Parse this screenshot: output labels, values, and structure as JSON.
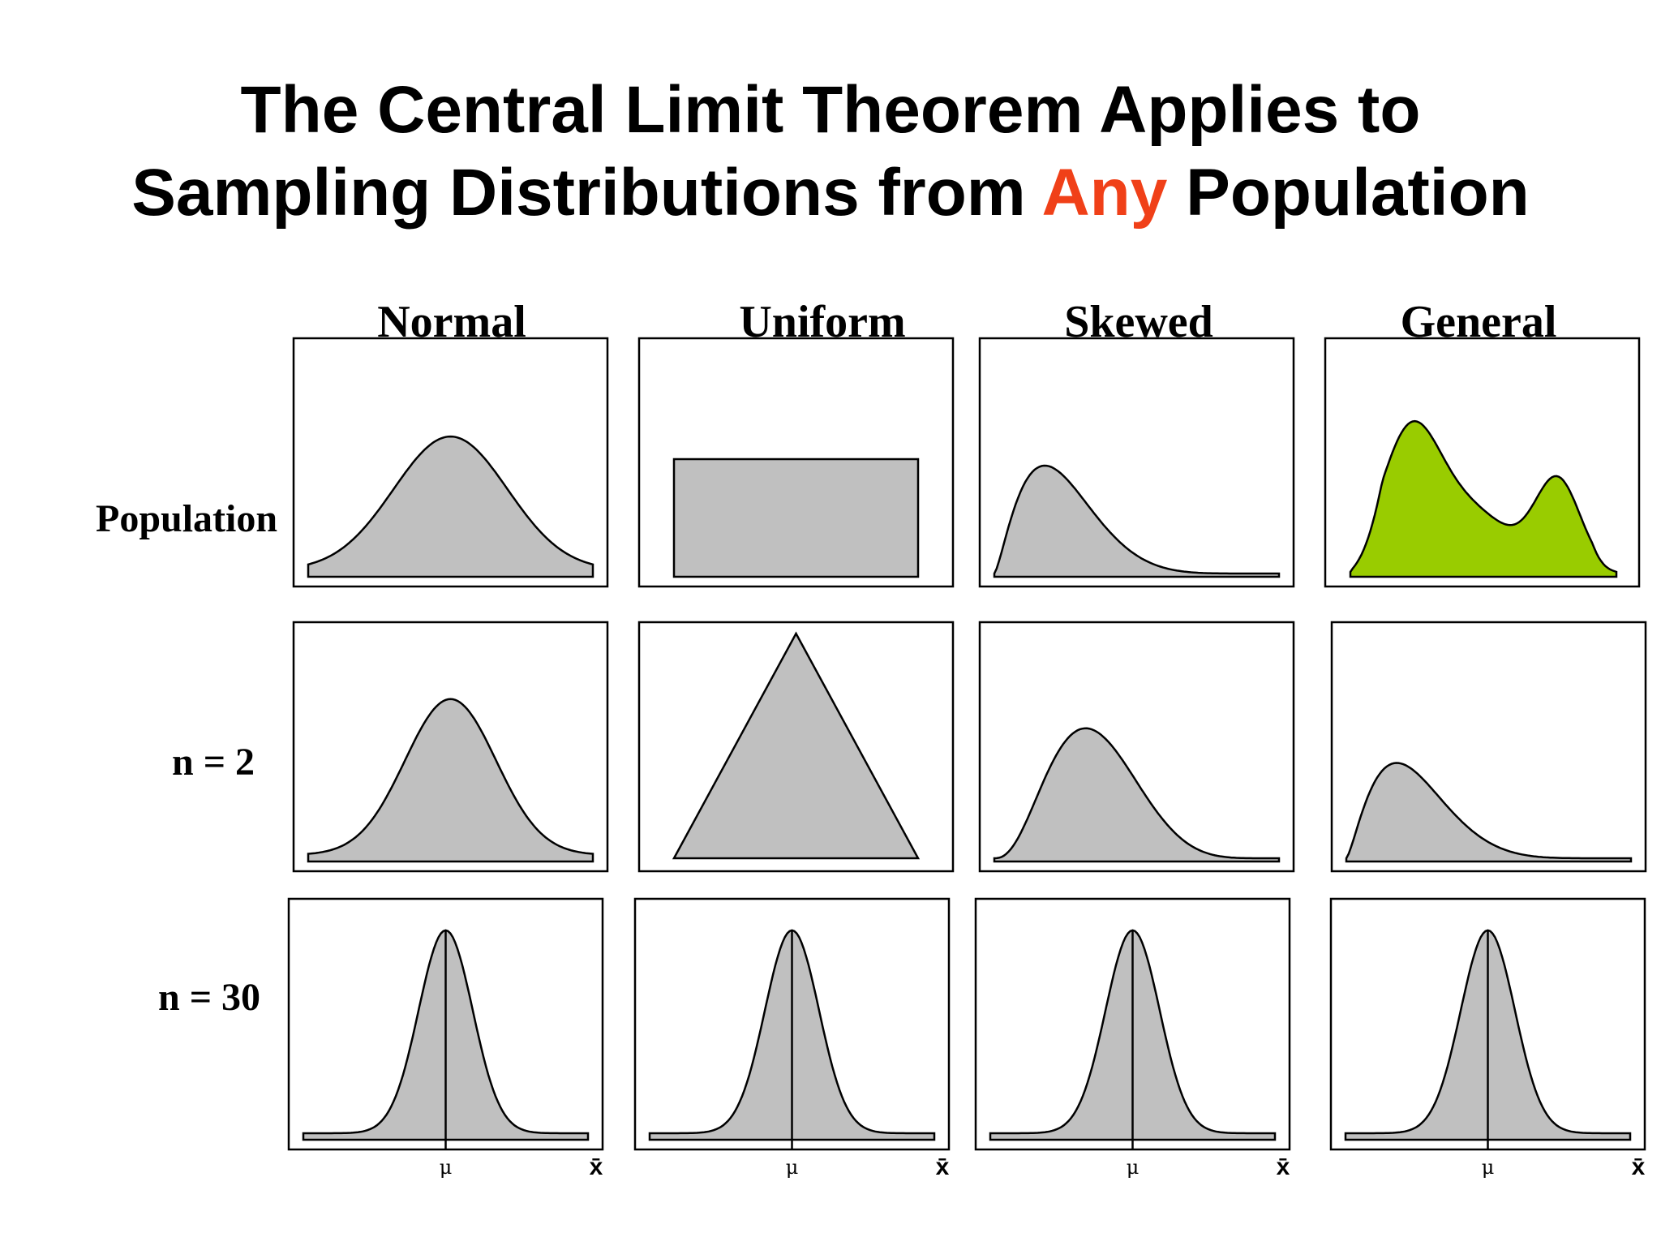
{
  "title": {
    "line1": "The Central Limit Theorem Applies to",
    "line2_before": "Sampling Distributions from ",
    "line2_accent": "Any",
    "line2_after": " Population",
    "accent_color": "#f04018"
  },
  "columns": [
    "Normal",
    "Uniform",
    "Skewed",
    "General"
  ],
  "rows": [
    "Population",
    "n = 2",
    "n = 30"
  ],
  "axis_labels": {
    "mean": "μ",
    "xbar": "x̄"
  },
  "colors": {
    "fill": "#c0c0c0",
    "general_population_fill": "#99cc00",
    "outline": "#000000"
  }
}
